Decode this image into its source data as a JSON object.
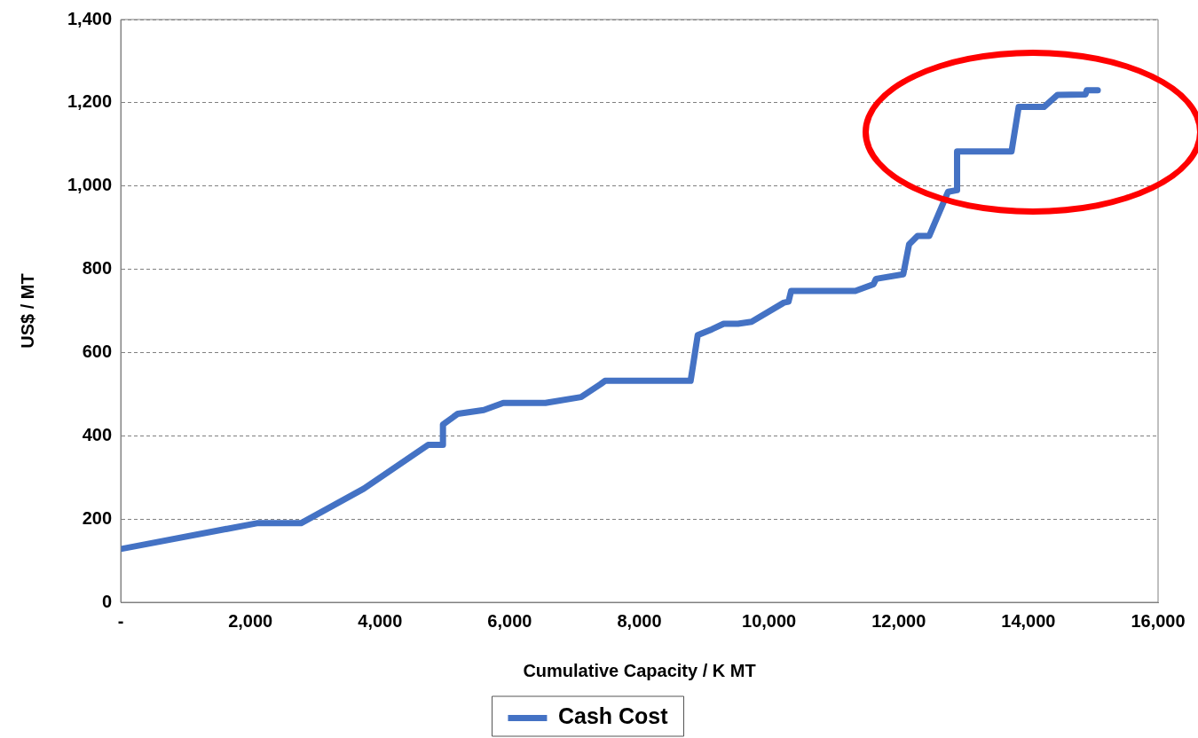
{
  "chart_data": {
    "type": "line",
    "xlabel": "Cumulative Capacity / K MT",
    "ylabel": "US$ / MT",
    "xlim": [
      0,
      16000
    ],
    "xticks": [
      {
        "value": 0,
        "label": "-"
      },
      {
        "value": 2000,
        "label": "2,000"
      },
      {
        "value": 4000,
        "label": "4,000"
      },
      {
        "value": 6000,
        "label": "6,000"
      },
      {
        "value": 8000,
        "label": "8,000"
      },
      {
        "value": 10000,
        "label": "10,000"
      },
      {
        "value": 12000,
        "label": "12,000"
      },
      {
        "value": 14000,
        "label": "14,000"
      },
      {
        "value": 16000,
        "label": "16,000"
      }
    ],
    "ylim": [
      0,
      1400
    ],
    "yticks": [
      0,
      200,
      400,
      600,
      800,
      {
        "value": 1000,
        "label": "1,000"
      },
      {
        "value": 1200,
        "label": "1,200"
      },
      {
        "value": 1400,
        "label": "1,400"
      }
    ],
    "grid": "y",
    "legend": "bottom",
    "marker": "none",
    "line_style": "solid",
    "series": [
      {
        "name": "Cash Cost",
        "color": "#4472c4",
        "x": [
          0,
          2100,
          2780,
          3750,
          4740,
          4970,
          4970,
          5200,
          5600,
          5900,
          6550,
          7100,
          7400,
          7470,
          8790,
          8900,
          9120,
          9300,
          9520,
          9730,
          10230,
          10300,
          10340,
          11330,
          11610,
          11650,
          12070,
          12160,
          12290,
          12470,
          12760,
          12900,
          12900,
          13740,
          13850,
          14240,
          14450,
          14880,
          14900,
          15070
        ],
        "values": [
          128,
          190,
          190,
          273,
          378,
          378,
          427,
          453,
          462,
          479,
          479,
          493,
          524,
          532,
          532,
          642,
          656,
          669,
          669,
          674,
          720,
          722,
          748,
          748,
          764,
          777,
          788,
          860,
          880,
          880,
          986,
          990,
          1083,
          1083,
          1190,
          1190,
          1219,
          1220,
          1230,
          1230
        ]
      }
    ]
  }
}
